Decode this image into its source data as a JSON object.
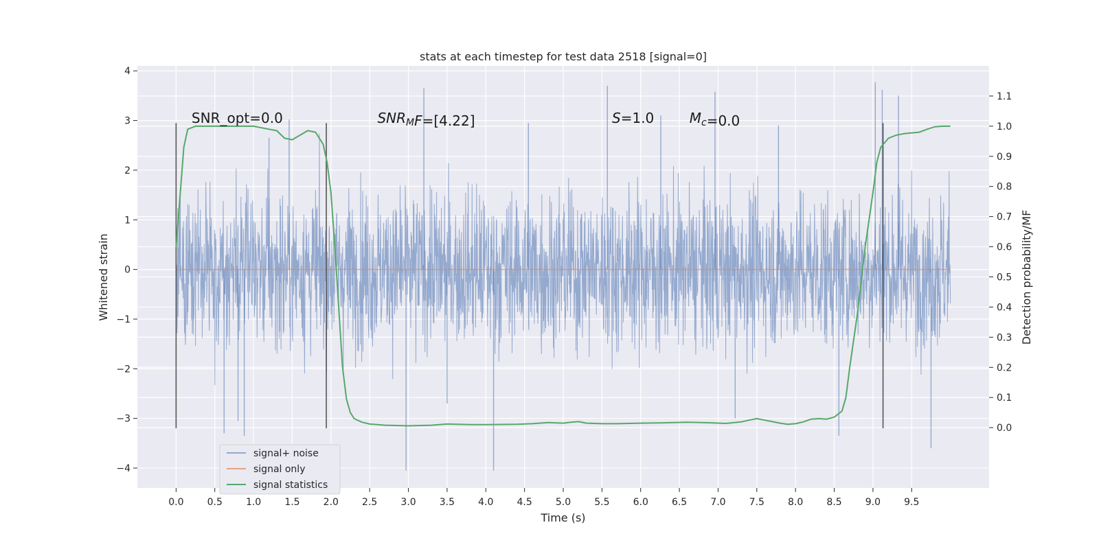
{
  "chart_data": {
    "type": "line",
    "title": "stats at each timestep for test data 2518 [signal=0]",
    "xlabel": "Time (s)",
    "ylabel": "Whitened strain",
    "y2label": "Detection probability/MF",
    "xlim": [
      -0.5,
      10.5
    ],
    "ylim": [
      -4.4,
      4.1
    ],
    "y2lim": [
      -0.2,
      1.2
    ],
    "x_ticks": [
      0.0,
      0.5,
      1.0,
      1.5,
      2.0,
      2.5,
      3.0,
      3.5,
      4.0,
      4.5,
      5.0,
      5.5,
      6.0,
      6.5,
      7.0,
      7.5,
      8.0,
      8.5,
      9.0,
      9.5
    ],
    "x_tick_labels": [
      "0.0",
      "0.5",
      "1.0",
      "1.5",
      "2.0",
      "2.5",
      "3.0",
      "3.5",
      "4.0",
      "4.5",
      "5.0",
      "5.5",
      "6.0",
      "6.5",
      "7.0",
      "7.5",
      "8.0",
      "8.5",
      "9.0",
      "9.5"
    ],
    "y_ticks": [
      -4,
      -3,
      -2,
      -1,
      0,
      1,
      2,
      3,
      4
    ],
    "y_tick_labels": [
      "−4",
      "−3",
      "−2",
      "−1",
      "0",
      "1",
      "2",
      "3",
      "4"
    ],
    "y2_ticks": [
      0.0,
      0.1,
      0.2,
      0.3,
      0.4,
      0.5,
      0.6,
      0.7,
      0.8,
      0.9,
      1.0,
      1.1
    ],
    "y2_tick_labels": [
      "0.0",
      "0.1",
      "0.2",
      "0.3",
      "0.4",
      "0.5",
      "0.6",
      "0.7",
      "0.8",
      "0.9",
      "1.0",
      "1.1"
    ],
    "grid": true,
    "legend_position": "lower-left",
    "series": [
      {
        "name": "signal+ noise",
        "color": "#4c72b0",
        "kind": "noise",
        "x_range": [
          0.0,
          10.0
        ],
        "core_sigma": 0.78,
        "spikes": [
          [
            1.46,
            3.02
          ],
          [
            0.62,
            -3.3
          ],
          [
            0.88,
            -3.35
          ],
          [
            2.97,
            -4.05
          ],
          [
            3.2,
            3.65
          ],
          [
            4.1,
            -4.05
          ],
          [
            5.57,
            3.7
          ],
          [
            6.96,
            3.58
          ],
          [
            8.56,
            -3.35
          ],
          [
            9.03,
            3.77
          ],
          [
            9.12,
            3.62
          ],
          [
            9.75,
            -3.6
          ],
          [
            1.2,
            2.65
          ],
          [
            0.8,
            -3.05
          ],
          [
            6.26,
            3.1
          ],
          [
            7.22,
            -3.0
          ],
          [
            4.55,
            2.95
          ],
          [
            3.5,
            -2.7
          ],
          [
            7.78,
            2.9
          ],
          [
            9.33,
            3.5
          ]
        ]
      },
      {
        "name": "signal only",
        "color": "#dd8452",
        "kind": "line",
        "x": [
          0.0,
          10.0
        ],
        "y": [
          0.0,
          0.0
        ]
      },
      {
        "name": "signal statistics",
        "color": "#55a868",
        "axis": "right",
        "kind": "line",
        "x": [
          0.0,
          0.1,
          0.15,
          0.25,
          0.4,
          0.6,
          0.8,
          1.0,
          1.1,
          1.2,
          1.3,
          1.4,
          1.5,
          1.6,
          1.7,
          1.8,
          1.85,
          1.9,
          1.95,
          2.0,
          2.05,
          2.1,
          2.15,
          2.2,
          2.25,
          2.3,
          2.4,
          2.5,
          2.7,
          3.0,
          3.3,
          3.5,
          3.8,
          4.0,
          4.4,
          4.6,
          4.8,
          5.0,
          5.1,
          5.2,
          5.3,
          5.5,
          5.7,
          6.0,
          6.3,
          6.6,
          6.9,
          7.1,
          7.3,
          7.4,
          7.5,
          7.6,
          7.7,
          7.8,
          7.9,
          8.0,
          8.1,
          8.2,
          8.3,
          8.4,
          8.5,
          8.6,
          8.65,
          8.7,
          8.8,
          8.9,
          9.0,
          9.05,
          9.1,
          9.2,
          9.3,
          9.4,
          9.6,
          9.7,
          9.8,
          9.9,
          10.0
        ],
        "y": [
          0.6,
          0.93,
          0.99,
          1.0,
          1.0,
          1.0,
          1.0,
          1.0,
          0.995,
          0.99,
          0.985,
          0.96,
          0.955,
          0.97,
          0.985,
          0.98,
          0.96,
          0.94,
          0.88,
          0.78,
          0.6,
          0.4,
          0.2,
          0.095,
          0.05,
          0.03,
          0.018,
          0.012,
          0.008,
          0.006,
          0.008,
          0.012,
          0.01,
          0.01,
          0.011,
          0.013,
          0.017,
          0.015,
          0.018,
          0.02,
          0.015,
          0.013,
          0.013,
          0.015,
          0.016,
          0.018,
          0.016,
          0.014,
          0.019,
          0.025,
          0.03,
          0.025,
          0.02,
          0.015,
          0.011,
          0.013,
          0.019,
          0.028,
          0.03,
          0.028,
          0.035,
          0.055,
          0.1,
          0.2,
          0.38,
          0.6,
          0.78,
          0.88,
          0.93,
          0.96,
          0.97,
          0.975,
          0.98,
          0.99,
          0.998,
          1.0,
          1.0
        ]
      }
    ],
    "vlines": [
      0.0,
      1.94,
      9.13
    ],
    "vline_yrange": [
      -3.2,
      2.95
    ],
    "annotations": [
      {
        "x": 0.2,
        "y": 2.95,
        "parts": [
          {
            "t": "SNR_opt=0.0",
            "style": "normal"
          }
        ]
      },
      {
        "x": 2.6,
        "y": 2.95,
        "parts": [
          {
            "t": "SNR",
            "style": "italic"
          },
          {
            "t": "M",
            "style": "italic",
            "sub": true
          },
          {
            "t": "F",
            "style": "italic"
          },
          {
            "t": "=[4.22]",
            "style": "normal"
          }
        ]
      },
      {
        "x": 5.63,
        "y": 2.95,
        "parts": [
          {
            "t": "S",
            "style": "italic"
          },
          {
            "t": "=1.0",
            "style": "normal"
          }
        ]
      },
      {
        "x": 6.63,
        "y": 2.95,
        "parts": [
          {
            "t": "M",
            "style": "italic"
          },
          {
            "t": "c",
            "style": "italic",
            "sub": true
          },
          {
            "t": "=0.0",
            "style": "normal"
          }
        ]
      }
    ]
  }
}
